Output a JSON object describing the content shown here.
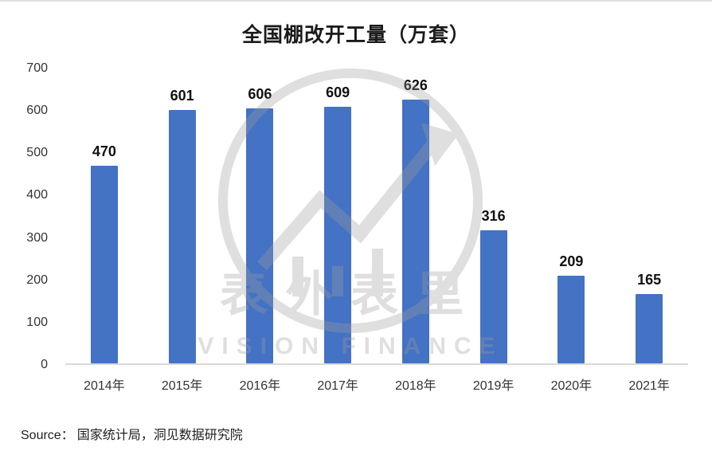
{
  "chart_data": {
    "type": "bar",
    "title": "全国棚改开工量（万套）",
    "categories": [
      "2014年",
      "2015年",
      "2016年",
      "2017年",
      "2018年",
      "2019年",
      "2020年",
      "2021年"
    ],
    "values": [
      470,
      601,
      606,
      609,
      626,
      316,
      209,
      165
    ],
    "xlabel": "",
    "ylabel": "",
    "ylim": [
      0,
      700
    ],
    "ytick_interval": 100,
    "y_tick_labels": [
      "700",
      "600",
      "500",
      "400",
      "300",
      "200",
      "100",
      "0"
    ],
    "bar_color": "#4472C4",
    "grid": false,
    "legend": "none"
  },
  "source": {
    "label": "Source：",
    "text": "国家统计局，洞见数据研究院"
  },
  "watermark": {
    "line1": "表外表里",
    "line2": "VISION FINANCE"
  },
  "colors": {
    "bar": "#4472C4",
    "axis_line": "#d9d9d9",
    "tick_text": "#333333",
    "watermark": "#9e9e9e"
  }
}
